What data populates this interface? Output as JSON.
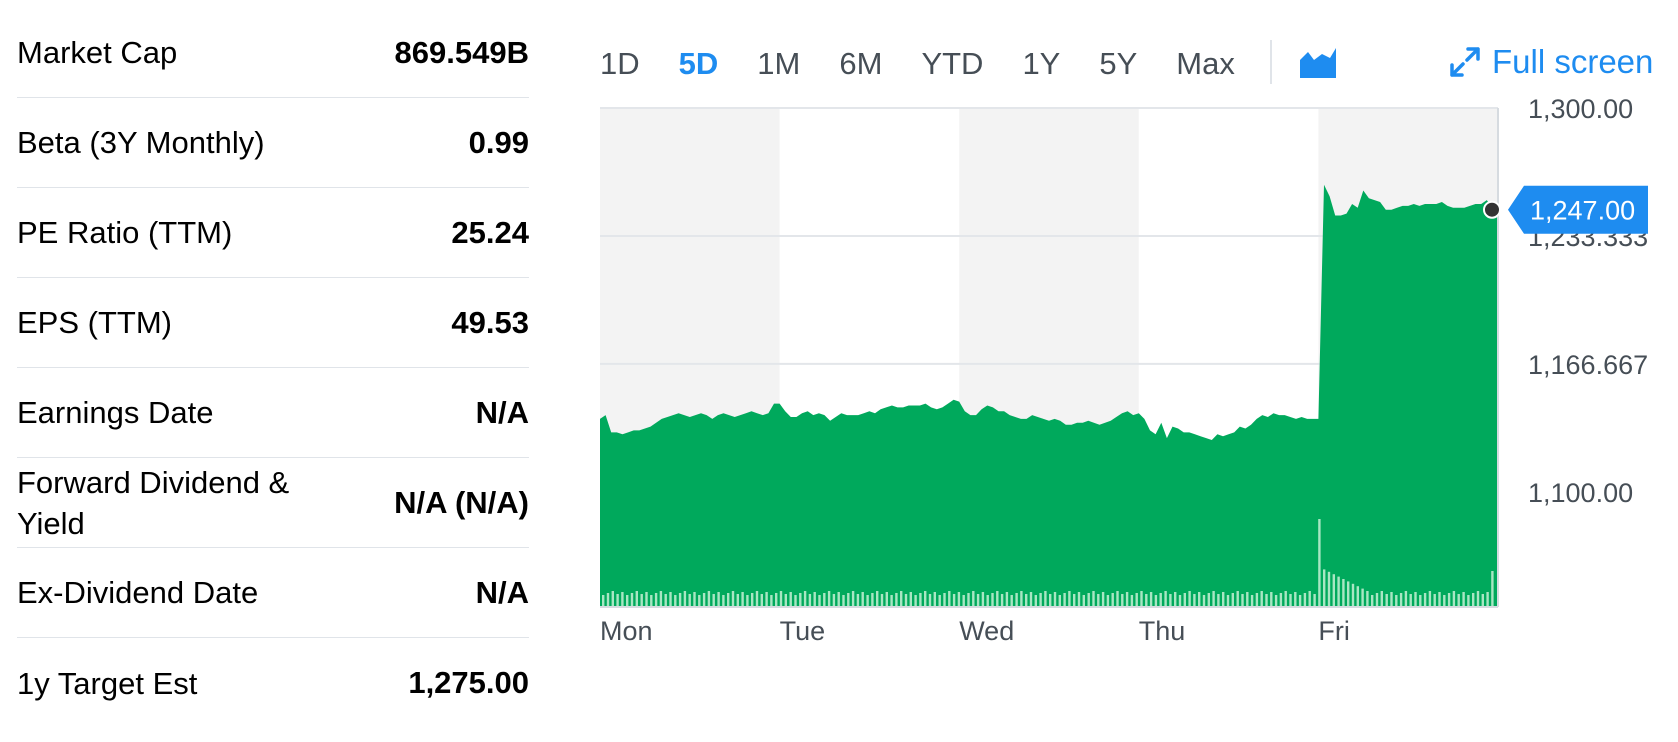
{
  "stats": [
    {
      "label": "Market Cap",
      "value": "869.549B"
    },
    {
      "label": "Beta (3Y Monthly)",
      "value": "0.99"
    },
    {
      "label": "PE Ratio (TTM)",
      "value": "25.24"
    },
    {
      "label": "EPS (TTM)",
      "value": "49.53"
    },
    {
      "label": "Earnings Date",
      "value": "N/A"
    },
    {
      "label": "Forward Dividend & Yield",
      "value": "N/A (N/A)"
    },
    {
      "label": "Ex-Dividend Date",
      "value": "N/A"
    },
    {
      "label": "1y Target Est",
      "value": "1,275.00"
    }
  ],
  "range_tabs": [
    "1D",
    "5D",
    "1M",
    "6M",
    "YTD",
    "1Y",
    "5Y",
    "Max"
  ],
  "active_range": "5D",
  "chart_type_icon": "area-chart-icon",
  "fullscreen_label": "Full screen",
  "colors": {
    "accent": "#1e8cf0",
    "area": "#00a95c",
    "volume": "#a8e6c3",
    "shade": "#f3f3f3"
  },
  "chart_data": {
    "type": "area",
    "x_labels": [
      "Mon",
      "Tue",
      "Wed",
      "Thu",
      "Fri"
    ],
    "y_ticks": [
      "1,300.00",
      "1,233.333",
      "1,166.667",
      "1,100.00"
    ],
    "ylim": [
      1040,
      1300
    ],
    "current_price_label": "1,247.00",
    "current_price": 1247.0,
    "series": [
      {
        "values": [
          1138,
          1140,
          1131,
          1131,
          1130,
          1131,
          1132,
          1132,
          1133,
          1134,
          1136,
          1138,
          1139,
          1140,
          1141,
          1140,
          1139,
          1140,
          1141,
          1140,
          1138,
          1140,
          1141,
          1140,
          1139,
          1140,
          1141,
          1142,
          1141,
          1140,
          1141,
          1146,
          1146,
          1142,
          1139,
          1139,
          1141,
          1142,
          1140,
          1141,
          1140,
          1137,
          1139,
          1141,
          1140,
          1140,
          1140,
          1141,
          1142,
          1141,
          1143,
          1144,
          1145,
          1144,
          1144,
          1145,
          1145,
          1145,
          1146,
          1144,
          1143,
          1144,
          1146,
          1148,
          1147,
          1142,
          1140,
          1140,
          1143,
          1145,
          1144,
          1142,
          1142,
          1140,
          1139,
          1138,
          1138,
          1140,
          1139,
          1138,
          1137,
          1138,
          1137,
          1135,
          1135,
          1136,
          1136,
          1137,
          1136,
          1135,
          1136,
          1137,
          1139,
          1141,
          1142,
          1140,
          1141,
          1138,
          1132,
          1130,
          1136,
          1128,
          1134,
          1133,
          1131,
          1131,
          1130,
          1129,
          1128,
          1127,
          1130,
          1129,
          1130,
          1131,
          1134,
          1133,
          1135,
          1138,
          1140,
          1139,
          1141,
          1140,
          1140,
          1139,
          1138,
          1139,
          1138,
          1138,
          1138,
          1260,
          1254,
          1244,
          1244,
          1245,
          1250,
          1248,
          1257,
          1253,
          1252,
          1251,
          1247,
          1247,
          1248,
          1249,
          1249,
          1250,
          1249,
          1250,
          1250,
          1250,
          1251,
          1249,
          1248,
          1248,
          1248,
          1249,
          1250,
          1250,
          1252,
          1248,
          1247
        ]
      }
    ]
  }
}
